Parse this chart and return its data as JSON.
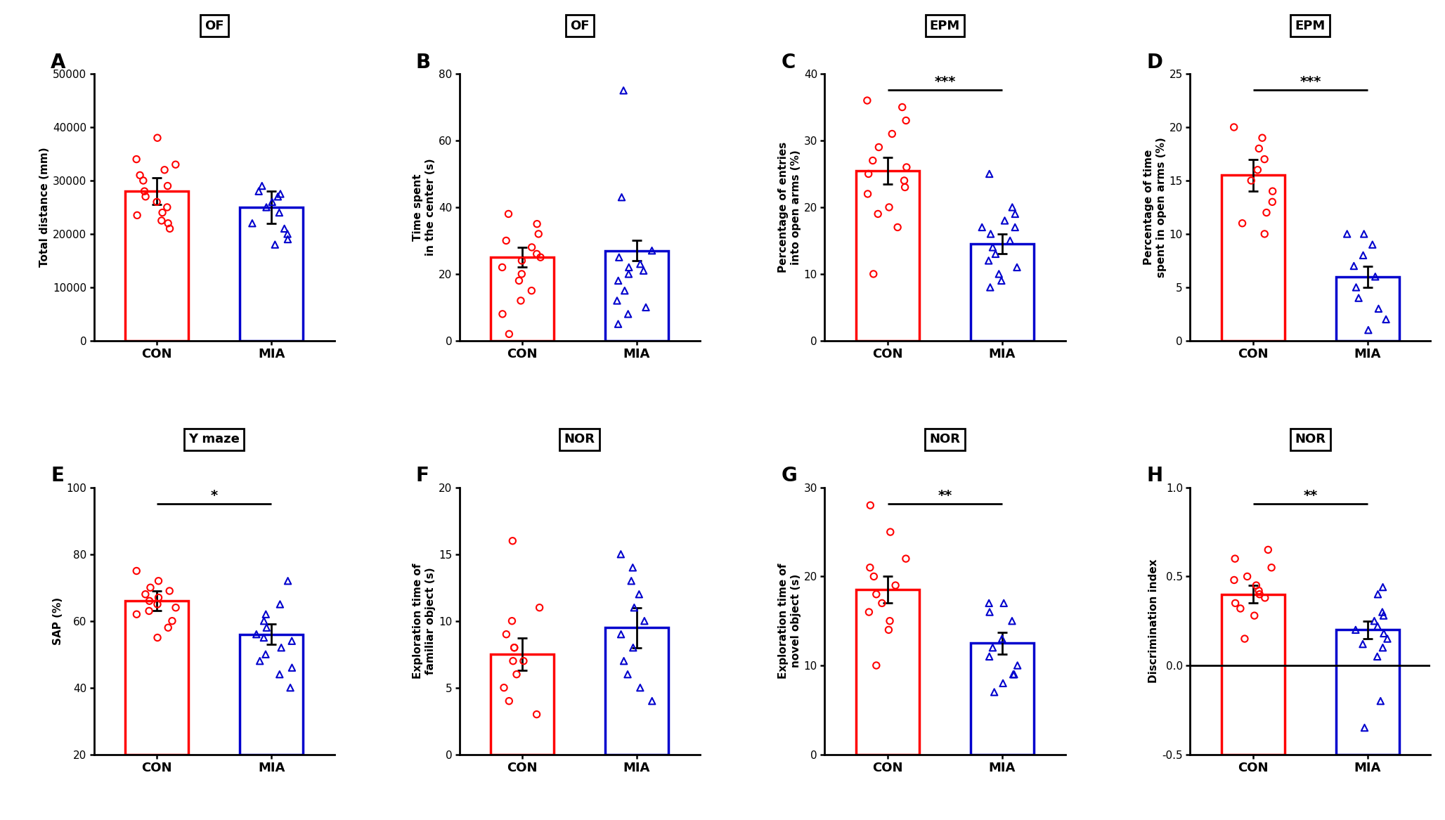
{
  "panels": [
    {
      "label": "A",
      "title": "OF",
      "ylabel": "Total distance (mm)",
      "ylim": [
        0,
        50000
      ],
      "yticks": [
        0,
        10000,
        20000,
        30000,
        40000,
        50000
      ],
      "ytick_labels": [
        "0",
        "10000",
        "20000",
        "30000",
        "40000",
        "50000"
      ],
      "bar_means": [
        28000,
        25000
      ],
      "bar_errors": [
        2500,
        3000
      ],
      "con_dots": [
        22000,
        23500,
        24000,
        25000,
        26000,
        27000,
        28000,
        29000,
        30000,
        31000,
        32000,
        33000,
        34000,
        38000,
        21000,
        22500
      ],
      "mia_dots": [
        18000,
        19000,
        20000,
        21000,
        22000,
        24000,
        25000,
        26000,
        27000,
        28000,
        29000,
        27500
      ],
      "sig": null
    },
    {
      "label": "B",
      "title": "OF",
      "ylabel": "Time spent\nin the center (s)",
      "ylim": [
        0,
        80
      ],
      "yticks": [
        0,
        20,
        40,
        60,
        80
      ],
      "ytick_labels": [
        "0",
        "20",
        "40",
        "60",
        "80"
      ],
      "bar_means": [
        25,
        27
      ],
      "bar_errors": [
        3,
        3
      ],
      "con_dots": [
        2,
        8,
        12,
        15,
        18,
        20,
        22,
        24,
        25,
        26,
        28,
        30,
        32,
        35,
        38
      ],
      "mia_dots": [
        5,
        8,
        10,
        12,
        15,
        18,
        20,
        21,
        22,
        23,
        25,
        27,
        43,
        75
      ],
      "sig": null
    },
    {
      "label": "C",
      "title": "EPM",
      "ylabel": "Percentage of entries\ninto open arms (%)",
      "ylim": [
        0,
        40
      ],
      "yticks": [
        0,
        10,
        20,
        30,
        40
      ],
      "ytick_labels": [
        "0",
        "10",
        "20",
        "30",
        "40"
      ],
      "bar_means": [
        25.5,
        14.5
      ],
      "bar_errors": [
        2.0,
        1.5
      ],
      "con_dots": [
        10,
        17,
        19,
        20,
        22,
        23,
        24,
        25,
        26,
        27,
        29,
        31,
        33,
        35,
        36
      ],
      "mia_dots": [
        8,
        9,
        10,
        11,
        12,
        13,
        14,
        15,
        16,
        17,
        17,
        18,
        19,
        20,
        25
      ],
      "sig": "***"
    },
    {
      "label": "D",
      "title": "EPM",
      "ylabel": "Percentage of time\nspent in open arms (%)",
      "ylim": [
        0,
        25
      ],
      "yticks": [
        0,
        5,
        10,
        15,
        20,
        25
      ],
      "ytick_labels": [
        "0",
        "5",
        "10",
        "15",
        "20",
        "25"
      ],
      "bar_means": [
        15.5,
        6.0
      ],
      "bar_errors": [
        1.5,
        1.0
      ],
      "con_dots": [
        10,
        11,
        12,
        13,
        14,
        15,
        16,
        17,
        18,
        19,
        20
      ],
      "mia_dots": [
        1,
        2,
        3,
        4,
        5,
        6,
        7,
        8,
        9,
        10,
        10
      ],
      "sig": "***"
    },
    {
      "label": "E",
      "title": "Y maze",
      "ylabel": "SAP (%)",
      "ylim": [
        20,
        100
      ],
      "yticks": [
        20,
        40,
        60,
        80,
        100
      ],
      "ytick_labels": [
        "20",
        "40",
        "60",
        "80",
        "100"
      ],
      "bar_means": [
        66,
        56
      ],
      "bar_errors": [
        3,
        3
      ],
      "con_dots": [
        55,
        58,
        60,
        62,
        63,
        64,
        65,
        66,
        67,
        68,
        69,
        70,
        72,
        75
      ],
      "mia_dots": [
        40,
        44,
        46,
        48,
        50,
        52,
        54,
        55,
        56,
        58,
        60,
        62,
        65,
        72
      ],
      "sig": "*"
    },
    {
      "label": "F",
      "title": "NOR",
      "ylabel": "Exploration time of\nfamiliar object (s)",
      "ylim": [
        0,
        20
      ],
      "yticks": [
        0,
        5,
        10,
        15,
        20
      ],
      "ytick_labels": [
        "0",
        "5",
        "10",
        "15",
        "20"
      ],
      "bar_means": [
        7.5,
        9.5
      ],
      "bar_errors": [
        1.2,
        1.5
      ],
      "con_dots": [
        3,
        4,
        5,
        6,
        7,
        7,
        8,
        8,
        9,
        10,
        11,
        16
      ],
      "mia_dots": [
        4,
        5,
        6,
        7,
        8,
        9,
        10,
        11,
        12,
        13,
        14,
        15
      ],
      "sig": null
    },
    {
      "label": "G",
      "title": "NOR",
      "ylabel": "Exploration time of\nnovel object (s)",
      "ylim": [
        0,
        30
      ],
      "yticks": [
        0,
        10,
        20,
        30
      ],
      "ytick_labels": [
        "0",
        "10",
        "20",
        "30"
      ],
      "bar_means": [
        18.5,
        12.5
      ],
      "bar_errors": [
        1.5,
        1.2
      ],
      "con_dots": [
        10,
        14,
        15,
        16,
        17,
        18,
        19,
        20,
        21,
        22,
        25,
        28
      ],
      "mia_dots": [
        7,
        8,
        9,
        9,
        10,
        11,
        12,
        13,
        15,
        16,
        17,
        17
      ],
      "sig": "**"
    },
    {
      "label": "H",
      "title": "NOR",
      "ylabel": "Discrimination index",
      "ylim": [
        -0.5,
        1.0
      ],
      "yticks": [
        -0.5,
        0.0,
        0.5,
        1.0
      ],
      "ytick_labels": [
        "-0.5",
        "0.0",
        "0.5",
        "1.0"
      ],
      "bar_means": [
        0.4,
        0.2
      ],
      "bar_errors": [
        0.05,
        0.05
      ],
      "con_dots": [
        0.15,
        0.28,
        0.32,
        0.35,
        0.38,
        0.4,
        0.42,
        0.45,
        0.48,
        0.5,
        0.55,
        0.6,
        0.65
      ],
      "mia_dots": [
        -0.35,
        -0.2,
        0.05,
        0.1,
        0.12,
        0.15,
        0.18,
        0.2,
        0.22,
        0.25,
        0.28,
        0.3,
        0.4,
        0.44
      ],
      "sig": "**",
      "hline": 0.0
    }
  ],
  "con_color": "#FF0000",
  "mia_color": "#0000CD",
  "bar_linewidth": 2.5,
  "dot_size": 45,
  "error_capsize": 5,
  "error_linewidth": 2.0,
  "spine_linewidth": 2.0
}
